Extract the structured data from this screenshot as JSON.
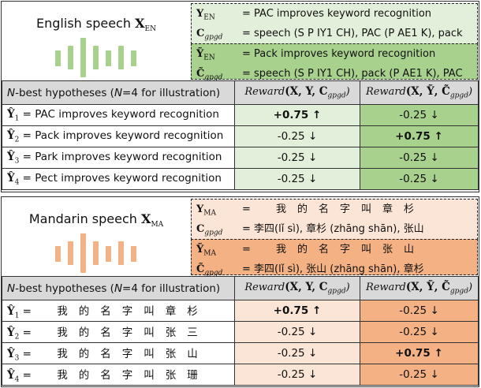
{
  "colors": {
    "en_light": "#e2efda",
    "en_dark": "#a9d18e",
    "ma_light": "#fbe5d6",
    "ma_dark": "#f4b183",
    "header": "#d9d9d9"
  },
  "panels": [
    {
      "key": "en",
      "title": "English speech",
      "title_sym": "X",
      "title_sub": "EN",
      "ref": [
        {
          "sym": "Y",
          "sub": "EN",
          "italic": false,
          "text": "= PAC improves keyword recognition"
        },
        {
          "sym": "C",
          "sub": "gpgd",
          "italic": true,
          "text": "= speech (S P IY1 CH), PAC (P AE1 K), pack"
        }
      ],
      "alt": [
        {
          "sym": "Ỹ",
          "sub": "EN",
          "italic": false,
          "text": "= Pack improves keyword recognition"
        },
        {
          "sym": "C̃",
          "sub": "gpgd",
          "italic": true,
          "text": "= speech (S P IY1 CH), pack (P AE1 K), PAC"
        }
      ],
      "header": {
        "col1_pre": "N",
        "col1_mid": "-best hypotheses (",
        "col1_n": "N",
        "col1_post": "=4 for illustration)",
        "col2_func": "Reward",
        "col2_args": "(X, Y, C",
        "col2_sub": "gpgd",
        "col2_close": ")",
        "col3_func": "Reward",
        "col3_args": "(X, Ỹ, C̃",
        "col3_sub": "gpgd",
        "col3_close": ")"
      },
      "rows": [
        {
          "sym": "Ŷ",
          "sub": "1",
          "text": "= PAC improves keyword recognition",
          "r1": "+0.75 ↑",
          "r1_bold": true,
          "r2": "-0.25 ↓",
          "r2_bold": false
        },
        {
          "sym": "Ŷ",
          "sub": "2",
          "text": "= Pack improves keyword recognition",
          "r1": "-0.25 ↓",
          "r1_bold": false,
          "r2": "+0.75 ↑",
          "r2_bold": true
        },
        {
          "sym": "Ŷ",
          "sub": "3",
          "text": "= Park improves keyword recognition",
          "r1": "-0.25 ↓",
          "r1_bold": false,
          "r2": "-0.25 ↓",
          "r2_bold": false
        },
        {
          "sym": "Ŷ",
          "sub": "4",
          "text": "= Pect improves keyword recognition",
          "r1": "-0.25 ↓",
          "r1_bold": false,
          "r2": "-0.25 ↓",
          "r2_bold": false
        }
      ]
    },
    {
      "key": "ma",
      "title": "Mandarin speech",
      "title_sym": "X",
      "title_sub": "MA",
      "ref": [
        {
          "sym": "Y",
          "sub": "MA",
          "italic": false,
          "text": "= 我的名字叫章杉",
          "zh": true
        },
        {
          "sym": "C",
          "sub": "gpgd",
          "italic": true,
          "text": "= 李四(lǐ sì), 章杉 (zhāng shān), 张山"
        }
      ],
      "alt": [
        {
          "sym": "Ỹ",
          "sub": "MA",
          "italic": false,
          "text": "= 我的名字叫张山",
          "zh": true
        },
        {
          "sym": "C̃",
          "sub": "gpgd",
          "italic": true,
          "text": "= 李四(lǐ sì), 张山 (zhāng shān), 章杉"
        }
      ],
      "header": {
        "col1_pre": "N",
        "col1_mid": "-best hypotheses (",
        "col1_n": "N",
        "col1_post": "=4 for illustration)",
        "col2_func": "Reward",
        "col2_args": "(X, Y, C",
        "col2_sub": "gpgd",
        "col2_close": ")",
        "col3_func": "Reward",
        "col3_args": "(X, Ỹ, C̃",
        "col3_sub": "gpgd",
        "col3_close": ")"
      },
      "rows": [
        {
          "sym": "Ŷ",
          "sub": "1",
          "text": "= 我的名字叫章杉",
          "zh": true,
          "r1": "+0.75 ↑",
          "r1_bold": true,
          "r2": "-0.25 ↓",
          "r2_bold": false
        },
        {
          "sym": "Ŷ",
          "sub": "2",
          "text": "= 我的名字叫张三",
          "zh": true,
          "r1": "-0.25 ↓",
          "r1_bold": false,
          "r2": "-0.25 ↓",
          "r2_bold": false
        },
        {
          "sym": "Ŷ",
          "sub": "3",
          "text": "= 我的名字叫张山",
          "zh": true,
          "r1": "-0.25 ↓",
          "r1_bold": false,
          "r2": "+0.75 ↑",
          "r2_bold": true
        },
        {
          "sym": "Ŷ",
          "sub": "4",
          "text": "= 我的名字叫张珊",
          "zh": true,
          "r1": "-0.25 ↓",
          "r1_bold": false,
          "r2": "-0.25 ↓",
          "r2_bold": false
        }
      ]
    }
  ]
}
